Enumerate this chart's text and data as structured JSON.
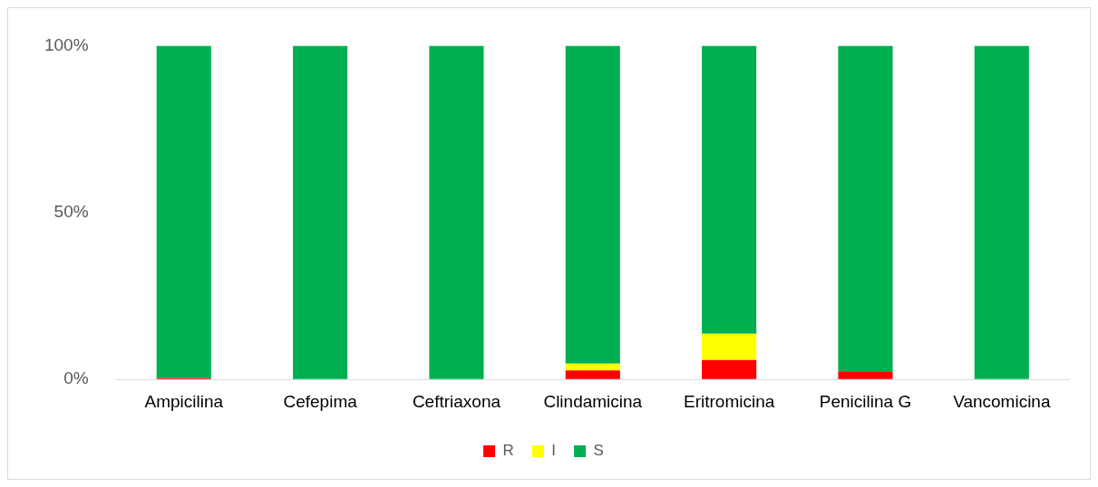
{
  "chart_data": {
    "type": "bar",
    "stacked": true,
    "categories": [
      "Ampicilina",
      "Cefepima",
      "Ceftriaxona",
      "Clindamicina",
      "Eritromicina",
      "Penicilina G",
      "Vancomicina"
    ],
    "series": [
      {
        "name": "R",
        "color": "#ff0000",
        "values": [
          0.4,
          0,
          0,
          2.7,
          5.8,
          2.4,
          0
        ]
      },
      {
        "name": "I",
        "color": "#ffff00",
        "values": [
          0,
          0,
          0,
          2,
          7.9,
          0,
          0
        ]
      },
      {
        "name": "S",
        "color": "#00b050",
        "values": [
          99.6,
          100,
          100,
          95.3,
          86.3,
          97.6,
          100
        ]
      }
    ],
    "ylim": [
      0,
      100
    ],
    "yticks": [
      {
        "value": 0,
        "label": "0%"
      },
      {
        "value": 50,
        "label": "50%"
      },
      {
        "value": 100,
        "label": "100%"
      }
    ],
    "legend": "bottom"
  }
}
